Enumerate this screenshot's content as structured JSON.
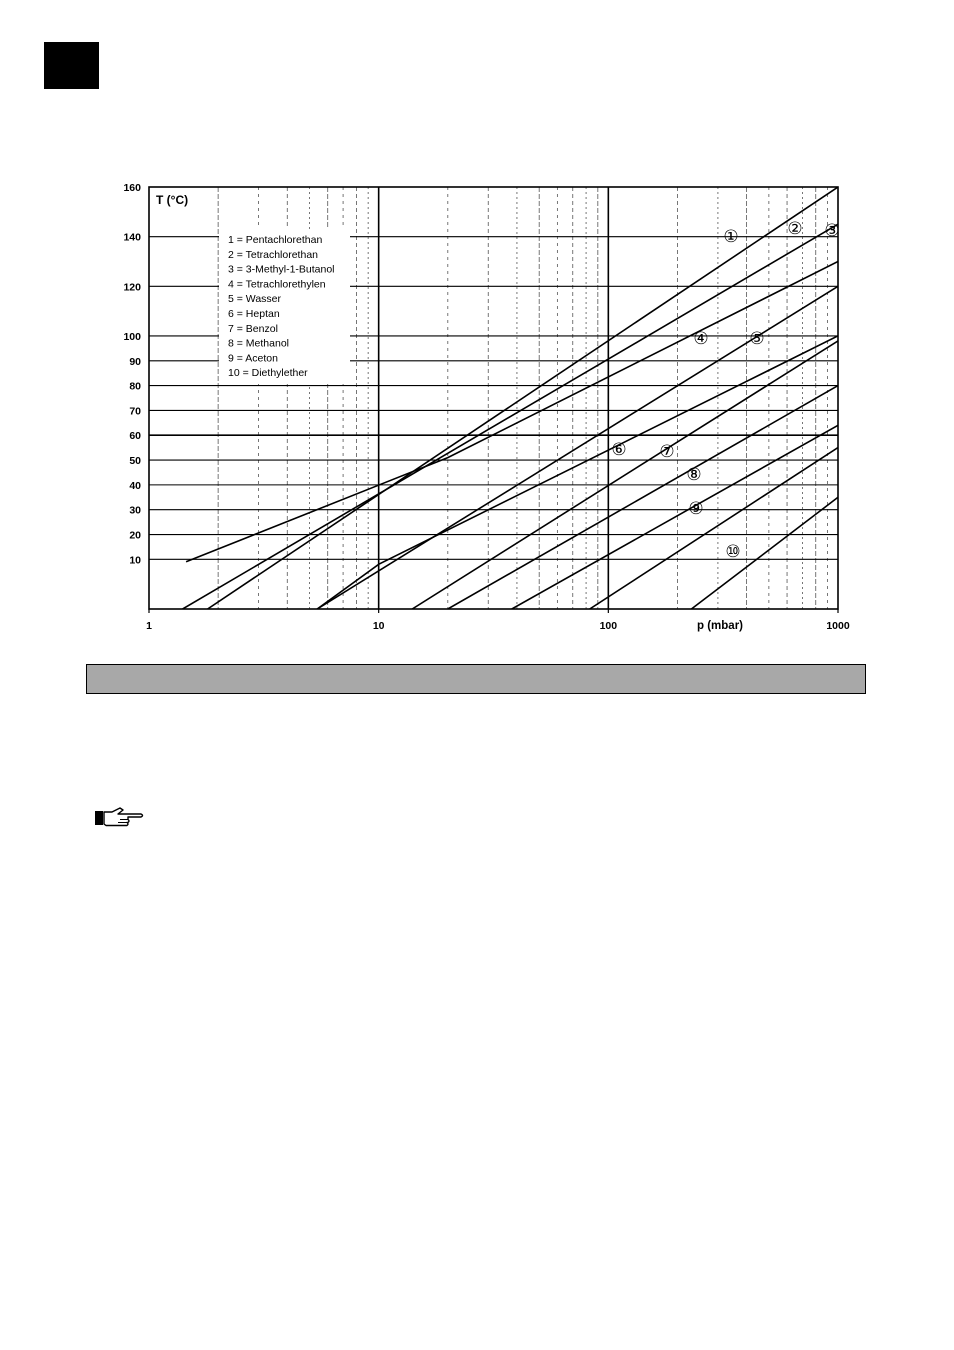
{
  "chart_data": {
    "type": "line",
    "x_scale": "log",
    "xlim": [
      1,
      1000
    ],
    "ylim": [
      -10,
      160
    ],
    "xlabel": "p (mbar)",
    "ylabel": "T (°C)",
    "x_ticks": [
      1,
      10,
      100,
      1000
    ],
    "x_tick_labels": [
      "1",
      "10",
      "100",
      "1000"
    ],
    "y_ticks": [
      10,
      20,
      30,
      40,
      50,
      60,
      70,
      80,
      90,
      100,
      120,
      140,
      160
    ],
    "y_tick_labels": [
      "10",
      "20",
      "30",
      "40",
      "50",
      "60",
      "70",
      "80",
      "90",
      "100",
      "120",
      "140",
      "160"
    ],
    "grid": true,
    "legend_position": "top-left",
    "legend": [
      "1 = Pentachlorethan",
      "2 = Tetrachlorethan",
      "3 = 3-Methyl-1-Butanol",
      "4 = Tetrachlorethylen",
      "5 = Wasser",
      "6 = Heptan",
      "7 = Benzol",
      "8 = Methanol",
      "9 = Aceton",
      "10 = Diethylether"
    ],
    "series": [
      {
        "label": "①",
        "points": [
          [
            1.8,
            -10
          ],
          [
            1000,
            160
          ]
        ]
      },
      {
        "label": "②",
        "points": [
          [
            1.4,
            -10
          ],
          [
            1000,
            145
          ]
        ]
      },
      {
        "label": "③",
        "points": [
          [
            1.45,
            9
          ],
          [
            20,
            51
          ],
          [
            1000,
            130
          ]
        ]
      },
      {
        "label": "④",
        "points": [
          [
            5.4,
            -10
          ],
          [
            1000,
            120
          ]
        ]
      },
      {
        "label": "⑤",
        "points": [
          [
            5.4,
            -10
          ],
          [
            10,
            8
          ],
          [
            1000,
            100
          ]
        ]
      },
      {
        "label": "⑥",
        "points": [
          [
            14,
            -10
          ],
          [
            1000,
            98
          ]
        ]
      },
      {
        "label": "⑦",
        "points": [
          [
            20,
            -10
          ],
          [
            1000,
            80
          ]
        ]
      },
      {
        "label": "⑧",
        "points": [
          [
            38,
            -10
          ],
          [
            1000,
            64
          ]
        ]
      },
      {
        "label": "⑨",
        "points": [
          [
            83,
            -10
          ],
          [
            1000,
            55
          ]
        ]
      },
      {
        "label": "⑩",
        "points": [
          [
            230,
            -10
          ],
          [
            1000,
            35
          ]
        ]
      }
    ]
  }
}
